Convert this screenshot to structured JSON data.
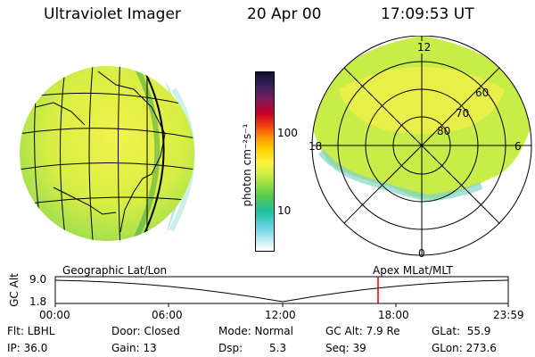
{
  "header": {
    "title": "Ultraviolet Imager",
    "date": "20 Apr 00",
    "time": "17:09:53 UT"
  },
  "colorbar": {
    "unit_label": "photon cm⁻²s⁻¹",
    "tick_100": "100",
    "tick_10": "10"
  },
  "polar_plot": {
    "mlt_top": "12",
    "mlt_left": "18",
    "mlt_right": "6",
    "mlt_bottom": "0",
    "lat_60": "60",
    "lat_70": "70",
    "lat_80": "80"
  },
  "timeline": {
    "left_label": "Geographic Lat/Lon",
    "right_label": "Apex MLat/MLT",
    "axis_title": "GC Alt",
    "y_max": "9.0",
    "y_min": "1.8",
    "x_ticks": [
      "00:00",
      "06:00",
      "12:00",
      "18:00",
      "23:59"
    ],
    "marker_color": "#e00000"
  },
  "info": {
    "filter": "Flt: LBHL",
    "ip": "IP: 36.0",
    "door": "Door: Closed",
    "gain": "Gain: 13",
    "mode": "Mode: Normal",
    "dsp_label": "Dsp:",
    "dsp_value": "5.3",
    "gc_alt": "GC Alt: 7.9 Re",
    "seq": "Seq: 39",
    "glat": "GLat:  55.9",
    "glon": "GLon: 273.6"
  }
}
